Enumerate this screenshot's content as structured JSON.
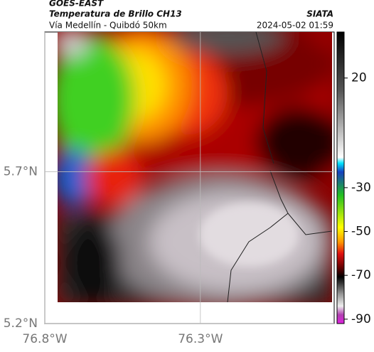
{
  "header": {
    "satellite": "GOES-EAST",
    "title": "Temperatura de Brillo CH13",
    "route": "Vía Medellín - Quibdó 50km",
    "source": "SIATA",
    "datetime": "2024-05-02 01:59"
  },
  "map": {
    "xlim": [
      -76.8,
      -75.87
    ],
    "ylim": [
      5.2,
      6.16
    ],
    "xticks": [
      {
        "value": -76.8,
        "label": "76.8°W"
      },
      {
        "value": -76.3,
        "label": "76.3°W"
      }
    ],
    "yticks": [
      {
        "value": 5.2,
        "label": "5.2°N"
      },
      {
        "value": 5.7,
        "label": "5.7°N"
      }
    ],
    "grid": true
  },
  "colorbar": {
    "lim": [
      -92,
      41
    ],
    "ticks": [
      20,
      -30,
      -50,
      -70,
      -90
    ]
  }
}
